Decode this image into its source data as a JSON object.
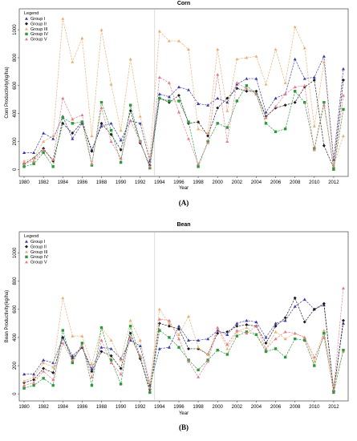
{
  "chart_data": [
    {
      "type": "line",
      "title": "Corn",
      "xlabel": "Year",
      "ylabel": "Corn Productivity(kg/ha)",
      "panel_label": "(A)",
      "xlim": [
        1979.5,
        2013.5
      ],
      "ylim": [
        -50,
        1150
      ],
      "x_ticks": [
        1980,
        1982,
        1984,
        1986,
        1988,
        1990,
        1992,
        1994,
        1996,
        1998,
        2000,
        2002,
        2004,
        2006,
        2008,
        2010,
        2012
      ],
      "y_ticks": [
        0,
        200,
        400,
        600,
        800,
        1000
      ],
      "grid": false,
      "legend_title": "Legend",
      "legend_placement": "top-left",
      "divider_year": 1993.5,
      "x": [
        1980,
        1981,
        1982,
        1983,
        1984,
        1985,
        1986,
        1987,
        1988,
        1989,
        1990,
        1991,
        1992,
        1993,
        1994,
        1995,
        1996,
        1997,
        1998,
        1999,
        2000,
        2001,
        2002,
        2003,
        2004,
        2005,
        2006,
        2007,
        2008,
        2009,
        2010,
        2011,
        2012,
        2013
      ],
      "series": [
        {
          "name": "Group I",
          "color": "#3a3aa8",
          "marker": "triangle",
          "values": [
            120,
            120,
            260,
            220,
            380,
            220,
            330,
            140,
            310,
            330,
            210,
            350,
            330,
            60,
            540,
            520,
            590,
            570,
            470,
            460,
            510,
            480,
            610,
            650,
            650,
            410,
            510,
            540,
            790,
            650,
            660,
            810,
            70,
            720
          ]
        },
        {
          "name": "Group II",
          "color": "#1a1a1a",
          "marker": "diamond",
          "values": [
            40,
            80,
            150,
            60,
            330,
            260,
            340,
            130,
            330,
            250,
            140,
            420,
            190,
            30,
            510,
            480,
            530,
            330,
            340,
            240,
            440,
            510,
            580,
            560,
            560,
            380,
            440,
            460,
            480,
            590,
            640,
            170,
            10,
            640
          ]
        },
        {
          "name": "Group III",
          "color": "#e8b070",
          "marker": "triangle",
          "values": [
            60,
            80,
            200,
            240,
            1080,
            770,
            940,
            240,
            1000,
            610,
            280,
            790,
            380,
            90,
            990,
            920,
            920,
            860,
            290,
            260,
            860,
            420,
            790,
            800,
            810,
            610,
            860,
            620,
            1020,
            870,
            310,
            770,
            30,
            240
          ]
        },
        {
          "name": "Group IV",
          "color": "#2a9a3a",
          "marker": "square",
          "values": [
            20,
            40,
            120,
            20,
            370,
            330,
            340,
            30,
            480,
            280,
            50,
            460,
            200,
            10,
            510,
            490,
            490,
            340,
            20,
            200,
            330,
            300,
            490,
            600,
            540,
            330,
            270,
            290,
            560,
            480,
            150,
            480,
            0,
            430
          ]
        },
        {
          "name": "Group V",
          "color": "#e67a8a",
          "marker": "triangle",
          "values": [
            40,
            60,
            140,
            70,
            510,
            360,
            390,
            40,
            440,
            200,
            80,
            350,
            200,
            20,
            660,
            620,
            410,
            220,
            40,
            190,
            680,
            200,
            620,
            580,
            540,
            370,
            450,
            540,
            590,
            600,
            140,
            460,
            20,
            530
          ]
        }
      ]
    },
    {
      "type": "line",
      "title": "Bean",
      "xlabel": "Year",
      "ylabel": "Bean Productivity(kg/ha)",
      "panel_label": "(B)",
      "xlim": [
        1979.5,
        2013.5
      ],
      "ylim": [
        -50,
        1150
      ],
      "x_ticks": [
        1980,
        1982,
        1984,
        1986,
        1988,
        1990,
        1992,
        1994,
        1996,
        1998,
        2000,
        2002,
        2004,
        2006,
        2008,
        2010,
        2012
      ],
      "y_ticks": [
        0,
        200,
        400,
        600,
        800,
        1000
      ],
      "grid": false,
      "legend_title": "Legend",
      "legend_placement": "top-left",
      "divider_year": 1993.5,
      "x": [
        1980,
        1981,
        1982,
        1983,
        1984,
        1985,
        1986,
        1987,
        1988,
        1989,
        1990,
        1991,
        1992,
        1993,
        1994,
        1995,
        1996,
        1997,
        1998,
        1999,
        2000,
        2001,
        2002,
        2003,
        2004,
        2005,
        2006,
        2007,
        2008,
        2009,
        2010,
        2011,
        2012,
        2013
      ],
      "series": [
        {
          "name": "Group I",
          "color": "#3a3aa8",
          "marker": "triangle",
          "values": [
            140,
            140,
            240,
            220,
            400,
            270,
            330,
            180,
            330,
            320,
            250,
            380,
            340,
            60,
            320,
            330,
            480,
            380,
            380,
            390,
            450,
            420,
            500,
            520,
            510,
            400,
            500,
            520,
            620,
            670,
            600,
            630,
            30,
            500
          ]
        },
        {
          "name": "Group II",
          "color": "#1a1a1a",
          "marker": "diamond",
          "values": [
            80,
            100,
            180,
            150,
            400,
            250,
            330,
            160,
            300,
            270,
            180,
            430,
            250,
            30,
            500,
            480,
            460,
            320,
            320,
            280,
            430,
            440,
            480,
            490,
            480,
            360,
            480,
            540,
            680,
            510,
            600,
            640,
            20,
            520
          ]
        },
        {
          "name": "Group III",
          "color": "#e8b070",
          "marker": "triangle",
          "values": [
            90,
            120,
            220,
            190,
            680,
            410,
            410,
            210,
            470,
            380,
            240,
            520,
            380,
            80,
            600,
            500,
            420,
            550,
            330,
            280,
            470,
            320,
            440,
            470,
            420,
            320,
            440,
            390,
            430,
            400,
            230,
            450,
            60,
            300
          ]
        },
        {
          "name": "Group IV",
          "color": "#2a9a3a",
          "marker": "square",
          "values": [
            40,
            60,
            110,
            60,
            450,
            220,
            360,
            60,
            470,
            240,
            70,
            480,
            260,
            10,
            450,
            400,
            330,
            240,
            170,
            240,
            310,
            280,
            410,
            440,
            420,
            300,
            320,
            260,
            390,
            380,
            200,
            430,
            10,
            310
          ]
        },
        {
          "name": "Group V",
          "color": "#e67a8a",
          "marker": "triangle",
          "values": [
            60,
            80,
            160,
            100,
            360,
            240,
            340,
            120,
            380,
            220,
            140,
            400,
            270,
            40,
            530,
            520,
            390,
            230,
            120,
            230,
            470,
            350,
            450,
            430,
            480,
            320,
            390,
            440,
            430,
            400,
            260,
            400,
            30,
            750
          ]
        }
      ]
    }
  ]
}
